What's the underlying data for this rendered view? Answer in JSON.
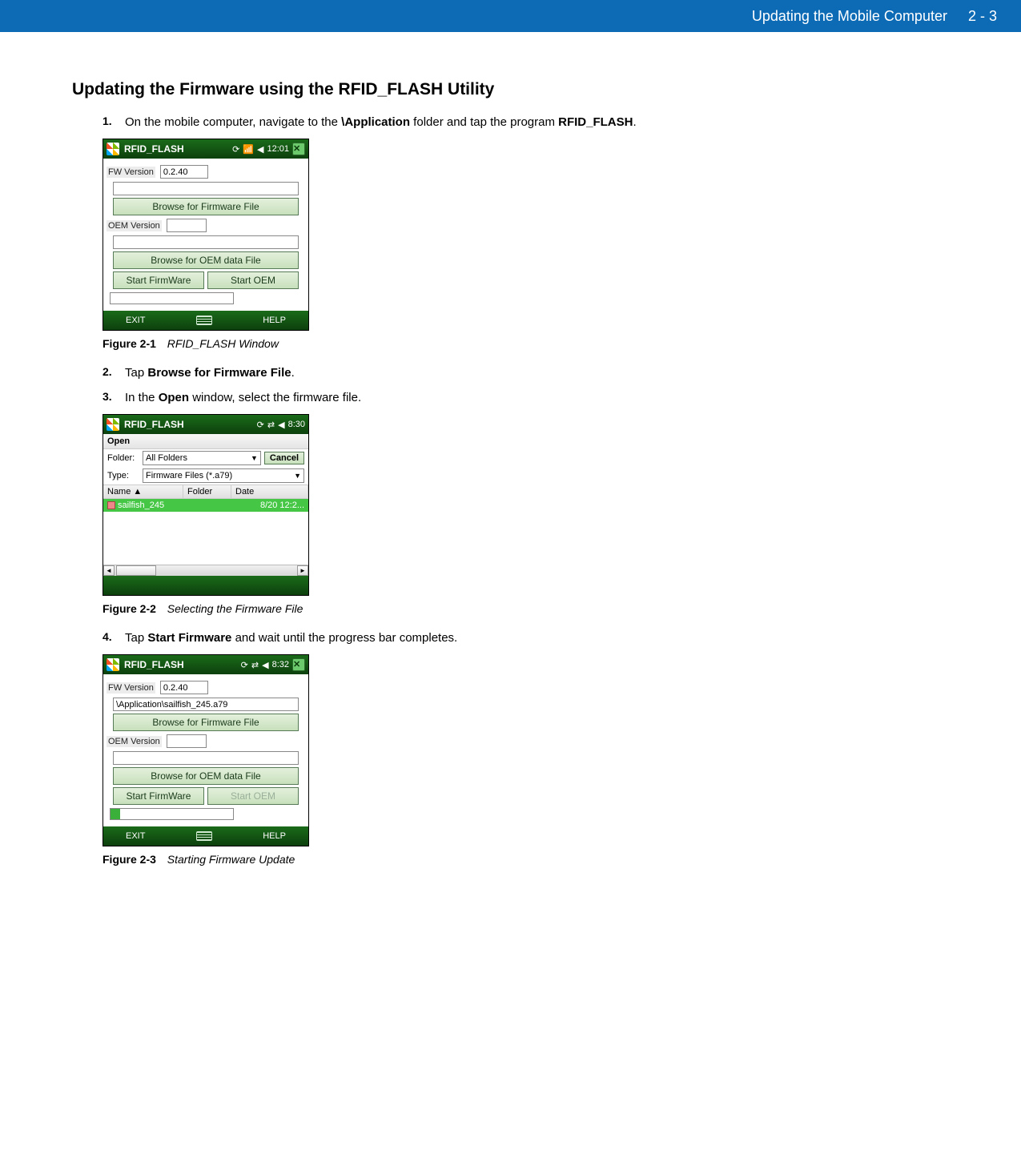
{
  "header": {
    "title": "Updating the Mobile Computer",
    "page": "2 - 3"
  },
  "heading": "Updating the Firmware using the RFID_FLASH Utility",
  "steps": {
    "1": {
      "num": "1.",
      "prefix": "On the mobile computer, navigate to the ",
      "bold1": "\\Application",
      "mid": " folder and tap the program ",
      "bold2": "RFID_FLASH",
      "suffix": "."
    },
    "2": {
      "num": "2.",
      "prefix": "Tap ",
      "bold1": "Browse for Firmware File",
      "suffix": "."
    },
    "3": {
      "num": "3.",
      "prefix": "In the ",
      "bold1": "Open",
      "suffix": " window, select the firmware file."
    },
    "4": {
      "num": "4.",
      "prefix": "Tap ",
      "bold1": "Start Firmware",
      "suffix": " and wait until the progress bar completes."
    }
  },
  "figures": {
    "1": {
      "label": "Figure 2-1",
      "caption": "RFID_FLASH Window"
    },
    "2": {
      "label": "Figure 2-2",
      "caption": "Selecting the Firmware File"
    },
    "3": {
      "label": "Figure 2-3",
      "caption": "Starting Firmware Update"
    }
  },
  "device1": {
    "appname": "RFID_FLASH",
    "time": "12:01",
    "fw_label": "FW Version",
    "fw_value": "0.2.40",
    "browse_fw": "Browse for Firmware File",
    "oem_label": "OEM Version",
    "browse_oem": "Browse for OEM data File",
    "start_fw": "Start FirmWare",
    "start_oem": "Start OEM",
    "exit": "EXIT",
    "help": "HELP"
  },
  "device2": {
    "appname": "RFID_FLASH",
    "time": "8:30",
    "open": "Open",
    "folder_label": "Folder:",
    "folder_value": "All Folders",
    "cancel": "Cancel",
    "type_label": "Type:",
    "type_value": "Firmware Files (*.a79)",
    "col_name": "Name",
    "col_folder": "Folder",
    "col_date": "Date",
    "file_name": "sailfish_245",
    "file_date": "8/20 12:2..."
  },
  "device3": {
    "appname": "RFID_FLASH",
    "time": "8:32",
    "fw_label": "FW Version",
    "fw_value": "0.2.40",
    "path": "\\Application\\sailfish_245.a79",
    "browse_fw": "Browse for Firmware File",
    "oem_label": "OEM Version",
    "browse_oem": "Browse for OEM data File",
    "start_fw": "Start FirmWare",
    "start_oem": "Start OEM",
    "exit": "EXIT",
    "help": "HELP",
    "progress_pct": 8
  },
  "style": {
    "header_bg": "#0d6bb6",
    "titlebar_gradient_top": "#1a6b1a",
    "titlebar_gradient_bottom": "#0d400d",
    "button_gradient_top": "#e3f0dc",
    "button_gradient_bottom": "#c8e0bc",
    "selection_bg": "#45c745",
    "progress_fill": "#3ab03a"
  }
}
